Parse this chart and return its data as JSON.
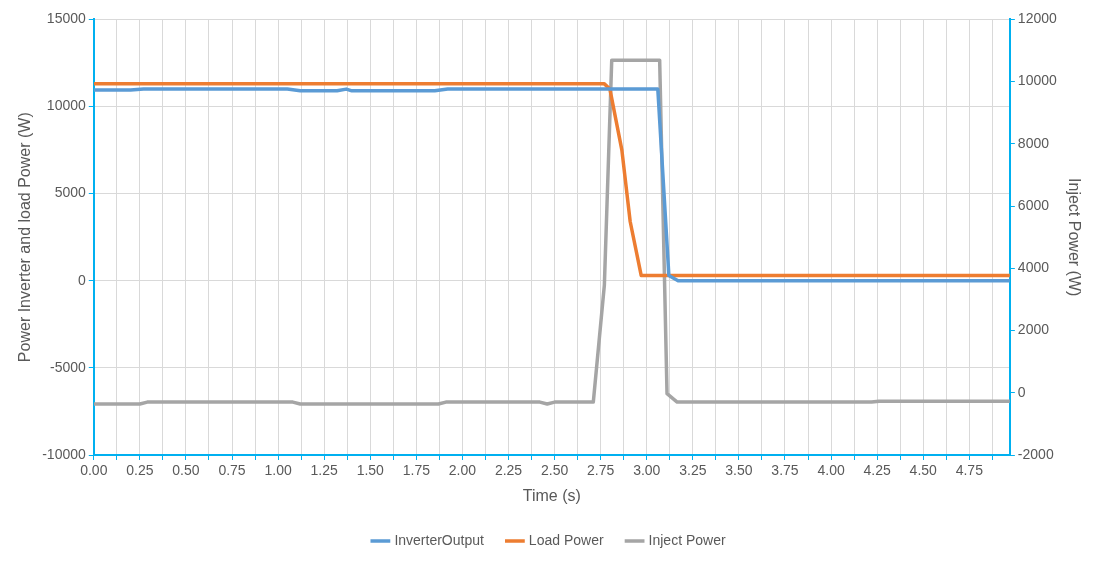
{
  "chart_data": {
    "type": "line",
    "xlabel": "Time (s)",
    "ylabel": "Power Inverter and load Power (W)",
    "y2label": "Inject Power (W)",
    "xlim": [
      0,
      4.97
    ],
    "xticks": [
      {
        "value": 0,
        "label": "0.00"
      },
      {
        "value": 0.125,
        "label": null
      },
      {
        "value": 0.25,
        "label": "0.25"
      },
      {
        "value": 0.375,
        "label": null
      },
      {
        "value": 0.5,
        "label": "0.50"
      },
      {
        "value": 0.625,
        "label": null
      },
      {
        "value": 0.75,
        "label": "0.75"
      },
      {
        "value": 0.875,
        "label": null
      },
      {
        "value": 1,
        "label": "1.00"
      },
      {
        "value": 1.125,
        "label": null
      },
      {
        "value": 1.25,
        "label": "1.25"
      },
      {
        "value": 1.375,
        "label": null
      },
      {
        "value": 1.5,
        "label": "1.50"
      },
      {
        "value": 1.625,
        "label": null
      },
      {
        "value": 1.75,
        "label": "1.75"
      },
      {
        "value": 1.875,
        "label": null
      },
      {
        "value": 2,
        "label": "2.00"
      },
      {
        "value": 2.125,
        "label": null
      },
      {
        "value": 2.25,
        "label": "2.25"
      },
      {
        "value": 2.375,
        "label": null
      },
      {
        "value": 2.5,
        "label": "2.50"
      },
      {
        "value": 2.625,
        "label": null
      },
      {
        "value": 2.75,
        "label": "2.75"
      },
      {
        "value": 2.875,
        "label": null
      },
      {
        "value": 3,
        "label": "3.00"
      },
      {
        "value": 3.125,
        "label": null
      },
      {
        "value": 3.25,
        "label": "3.25"
      },
      {
        "value": 3.375,
        "label": null
      },
      {
        "value": 3.5,
        "label": "3.50"
      },
      {
        "value": 3.625,
        "label": null
      },
      {
        "value": 3.75,
        "label": "3.75"
      },
      {
        "value": 3.875,
        "label": null
      },
      {
        "value": 4,
        "label": "4.00"
      },
      {
        "value": 4.125,
        "label": null
      },
      {
        "value": 4.25,
        "label": "4.25"
      },
      {
        "value": 4.375,
        "label": null
      },
      {
        "value": 4.5,
        "label": "4.50"
      },
      {
        "value": 4.625,
        "label": null
      },
      {
        "value": 4.75,
        "label": "4.75"
      },
      {
        "value": 4.875,
        "label": null
      }
    ],
    "ylim": [
      -10000,
      15000
    ],
    "yticks": [
      -10000,
      -5000,
      0,
      5000,
      10000,
      15000
    ],
    "y2lim": [
      -2000,
      12000
    ],
    "y2ticks": [
      -2000,
      0,
      2000,
      4000,
      6000,
      8000,
      10000,
      12000
    ],
    "grid": true,
    "legend": "bottom",
    "marker": "none",
    "line_style": "solid",
    "series": [
      {
        "name": "InverterOutput",
        "color": "#5b9bd5",
        "x": [
          0,
          0.2,
          0.27,
          1.05,
          1.12,
          1.32,
          1.37,
          1.4,
          1.85,
          1.92,
          3.06,
          3.12,
          3.17,
          4.97
        ],
        "values": [
          10950,
          10950,
          11000,
          11000,
          10900,
          10900,
          11000,
          10900,
          10900,
          11000,
          11000,
          300,
          0,
          0
        ]
      },
      {
        "name": "Load Power",
        "color": "#ed7d31",
        "x": [
          0,
          2.77,
          2.8,
          2.865,
          2.91,
          2.97,
          4.97
        ],
        "values": [
          11300,
          11300,
          11000,
          7500,
          3400,
          300,
          300
        ]
      },
      {
        "name": "Inject Power",
        "color": "#a5a5a5",
        "axis": "y2",
        "x": [
          0,
          0.25,
          0.29,
          1.08,
          1.12,
          1.87,
          1.91,
          2.42,
          2.46,
          2.5,
          2.71,
          2.77,
          2.81,
          3.07,
          3.11,
          3.165,
          4.22,
          4.26,
          4.97
        ],
        "values": [
          -360,
          -360,
          -300,
          -300,
          -360,
          -360,
          -300,
          -300,
          -360,
          -300,
          -300,
          3460,
          10690,
          10690,
          -30,
          -300,
          -300,
          -270,
          -270
        ]
      }
    ]
  }
}
